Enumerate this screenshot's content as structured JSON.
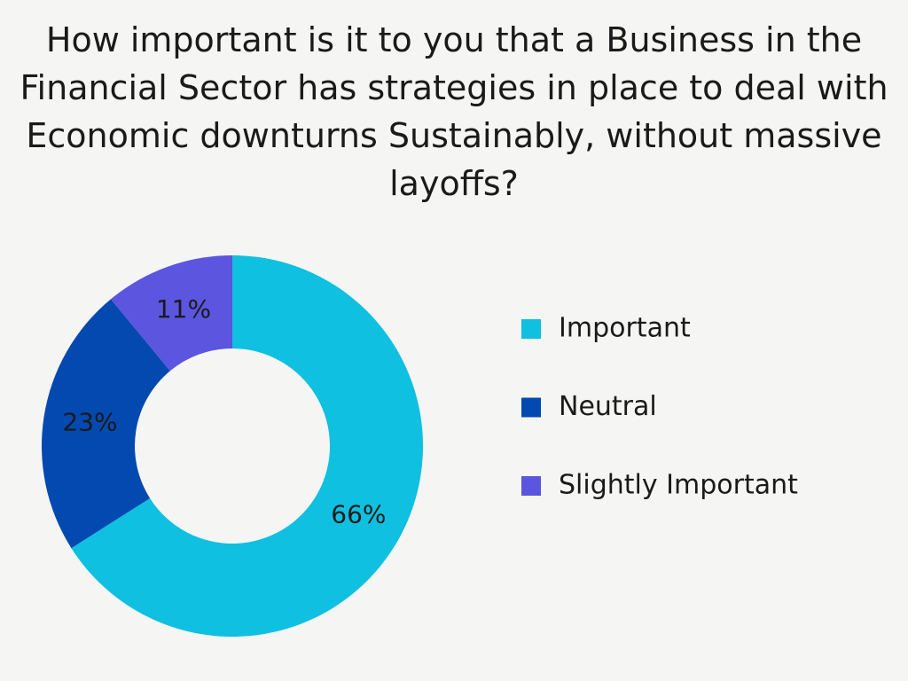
{
  "chart_data": {
    "type": "donut",
    "title": "How important is it to you that a Business in the Financial Sector has strategies in place to deal with Economic downturns Sustainably, without massive layoffs?",
    "categories": [
      "Important",
      "Neutral",
      "Slightly Important"
    ],
    "values": [
      66,
      23,
      11
    ],
    "value_labels": [
      "66%",
      "23%",
      "11%"
    ],
    "colors": [
      "#0fc0e0",
      "#0449b0",
      "#5b55e0"
    ],
    "legend": "right"
  }
}
